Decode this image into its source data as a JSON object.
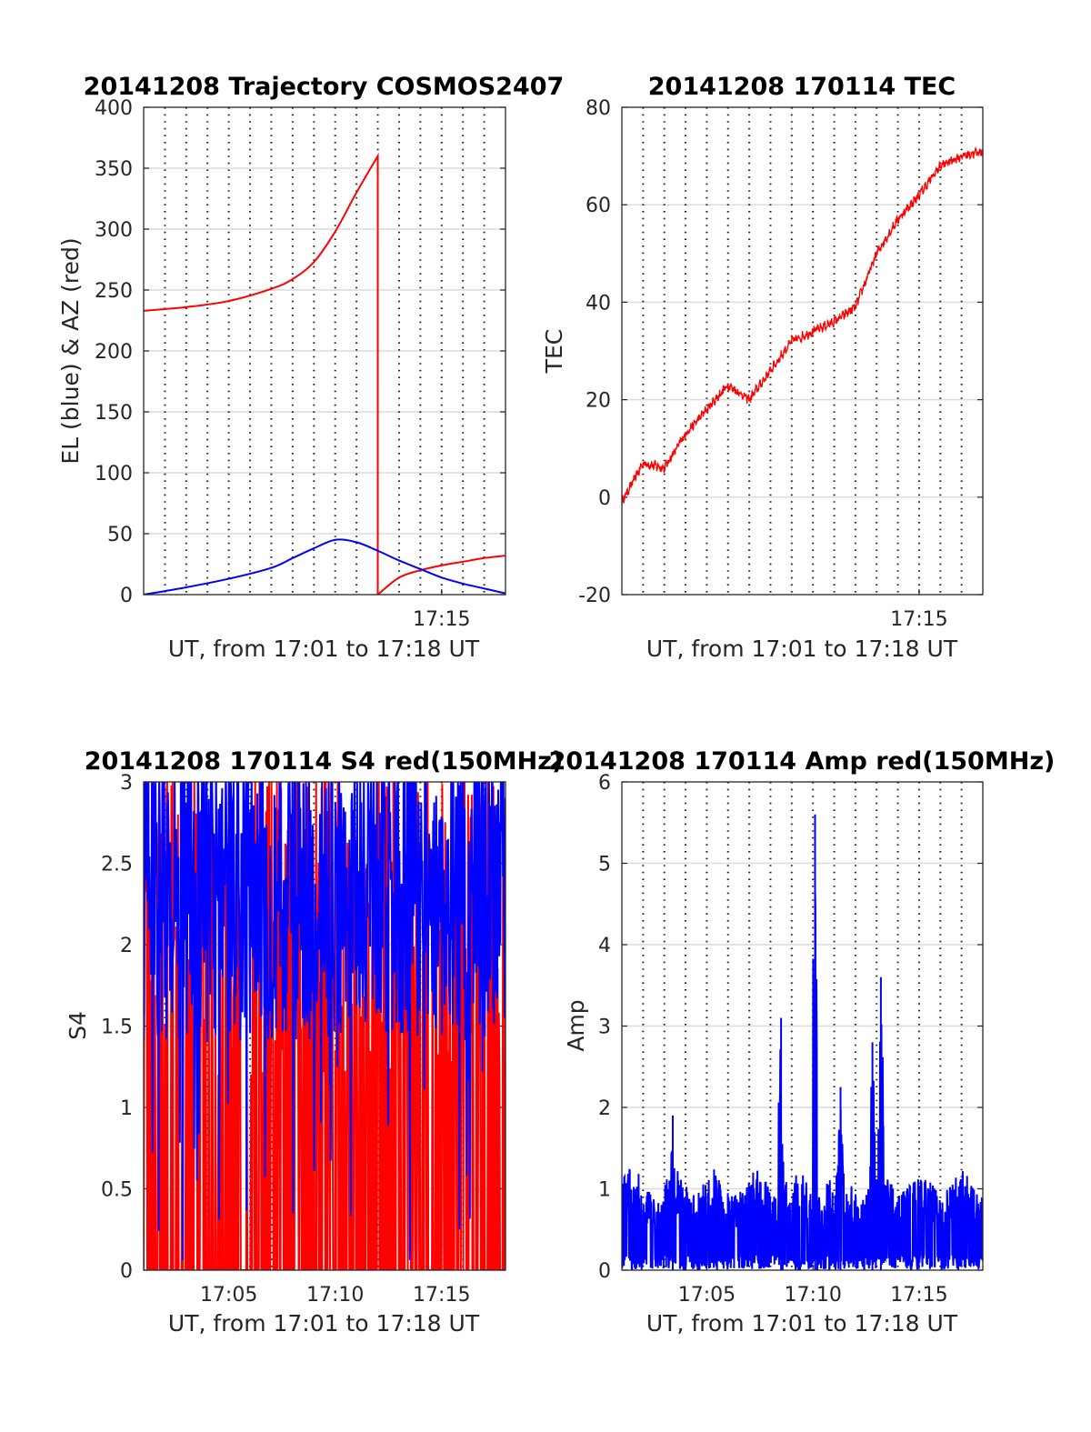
{
  "colors": {
    "red": "#ff0000",
    "blue": "#0000ff",
    "grid": "#dcdcdc",
    "axis": "#262626",
    "background": "#ffffff"
  },
  "chart_data": [
    {
      "id": "trajectory",
      "type": "line",
      "title": "20141208 Trajectory COSMOS2407",
      "xlabel": "UT, from 17:01 to 17:18 UT",
      "ylabel": "EL (blue) & AZ (red)",
      "xlim": [
        "17:01",
        "17:18"
      ],
      "xticks": [
        "17:15"
      ],
      "ylim": [
        0,
        400
      ],
      "yticks": [
        "0",
        "50",
        "100",
        "150",
        "200",
        "250",
        "300",
        "350",
        "400"
      ],
      "grid": true,
      "series": [
        {
          "color": "#ff0000",
          "x": [
            "17:01",
            "17:03",
            "17:05",
            "17:07",
            "17:08",
            "17:09",
            "17:10",
            "17:11",
            "17:12",
            "17:12",
            "17:13",
            "17:14",
            "17:15",
            "17:16",
            "17:17",
            "17:18"
          ],
          "values": [
            233,
            236,
            241,
            251,
            259,
            273,
            298,
            330,
            360,
            0,
            14,
            20,
            24,
            27,
            30,
            32
          ]
        },
        {
          "color": "#0000ff",
          "x": [
            "17:01",
            "17:03",
            "17:05",
            "17:07",
            "17:08",
            "17:09",
            "17:10",
            "17:11",
            "17:12",
            "17:13",
            "17:14",
            "17:15",
            "17:16",
            "17:17",
            "17:18"
          ],
          "values": [
            0,
            6,
            13,
            22,
            30,
            38,
            45,
            43,
            36,
            28,
            21,
            14,
            9,
            5,
            1
          ]
        }
      ]
    },
    {
      "id": "tec",
      "type": "line",
      "title": "20141208 170114 TEC",
      "xlabel": "UT, from 17:01 to 17:18 UT",
      "ylabel": "TEC",
      "xlim": [
        "17:01",
        "17:18"
      ],
      "xticks": [
        "17:15"
      ],
      "ylim": [
        -20,
        80
      ],
      "yticks": [
        "-20",
        "0",
        "20",
        "40",
        "60",
        "80"
      ],
      "grid": true,
      "series": [
        {
          "color": "#ff0000",
          "x": [
            "17:01",
            "17:02",
            "17:03",
            "17:04",
            "17:05",
            "17:06",
            "17:07",
            "17:08",
            "17:09",
            "17:10",
            "17:11",
            "17:12",
            "17:13",
            "17:14",
            "17:15",
            "17:16",
            "17:17",
            "17:18"
          ],
          "values": [
            -1,
            7,
            6,
            13,
            18,
            23,
            20,
            26,
            32,
            34,
            36,
            39,
            50,
            57,
            62,
            68,
            70,
            71
          ]
        }
      ]
    },
    {
      "id": "s4",
      "type": "line",
      "title": "20141208 170114 S4 red(150MHz)",
      "xlabel": "UT, from 17:01 to 17:18 UT",
      "ylabel": "S4",
      "xlim": [
        "17:01",
        "17:18"
      ],
      "xticks": [
        "17:05",
        "17:10",
        "17:15"
      ],
      "ylim": [
        0,
        3
      ],
      "yticks": [
        "0",
        "0.5",
        "1",
        "1.5",
        "2",
        "2.5",
        "3"
      ],
      "grid": true,
      "series": [
        {
          "color": "#ff0000",
          "x": [
            "17:01",
            "17:18"
          ],
          "range": [
            0,
            3
          ]
        },
        {
          "color": "#0000ff",
          "x": [
            "17:01",
            "17:18"
          ],
          "range": [
            1.2,
            3
          ]
        }
      ]
    },
    {
      "id": "amp",
      "type": "line",
      "title": "20141208 170114 Amp red(150MHz)",
      "xlabel": "UT, from 17:01 to 17:18 UT",
      "ylabel": "Amp",
      "xlim": [
        "17:01",
        "17:18"
      ],
      "xticks": [
        "17:05",
        "17:10",
        "17:15"
      ],
      "ylim": [
        0,
        6
      ],
      "yticks": [
        "0",
        "1",
        "2",
        "3",
        "4",
        "5",
        "6"
      ],
      "grid": true,
      "series": [
        {
          "color": "#0000ff",
          "x": [
            "17:01",
            "17:18"
          ],
          "baseline": 1.1,
          "peaks": [
            {
              "x": "17:03.4",
              "value": 1.9
            },
            {
              "x": "17:08.5",
              "value": 3.1
            },
            {
              "x": "17:10.1",
              "value": 5.6
            },
            {
              "x": "17:11.3",
              "value": 2.25
            },
            {
              "x": "17:12.8",
              "value": 2.8
            },
            {
              "x": "17:13.2",
              "value": 3.6
            }
          ]
        }
      ]
    }
  ]
}
